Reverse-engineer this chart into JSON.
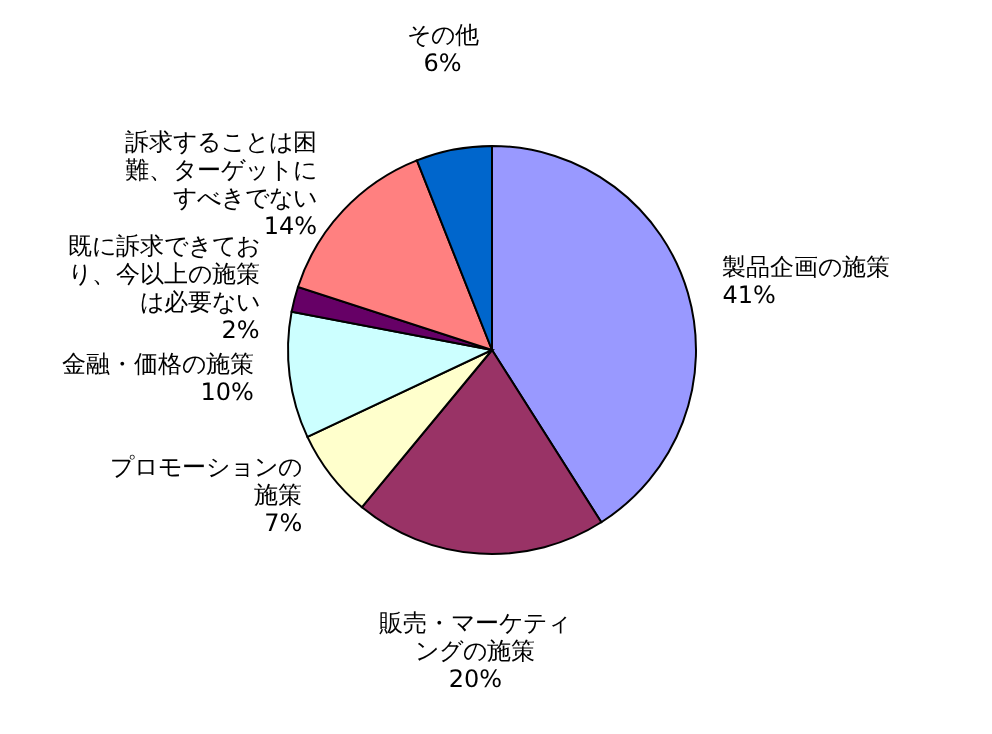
{
  "chart_data": {
    "type": "pie",
    "categories": [
      "製品企画の施策",
      "販売・マーケティングの施策",
      "プロモーションの施策",
      "金融・価格の施策",
      "既に訴求できており、今以上の施策は必要ない",
      "訴求することは困難、ターゲットにすべきでない",
      "その他"
    ],
    "values": [
      41,
      20,
      7,
      10,
      2,
      14,
      6
    ],
    "value_labels": [
      "41%",
      "20%",
      "7%",
      "10%",
      "2%",
      "14%",
      "6%"
    ],
    "colors": [
      "#9999ff",
      "#993366",
      "#ffffcc",
      "#ccffff",
      "#660066",
      "#ff8080",
      "#0066cc"
    ]
  }
}
